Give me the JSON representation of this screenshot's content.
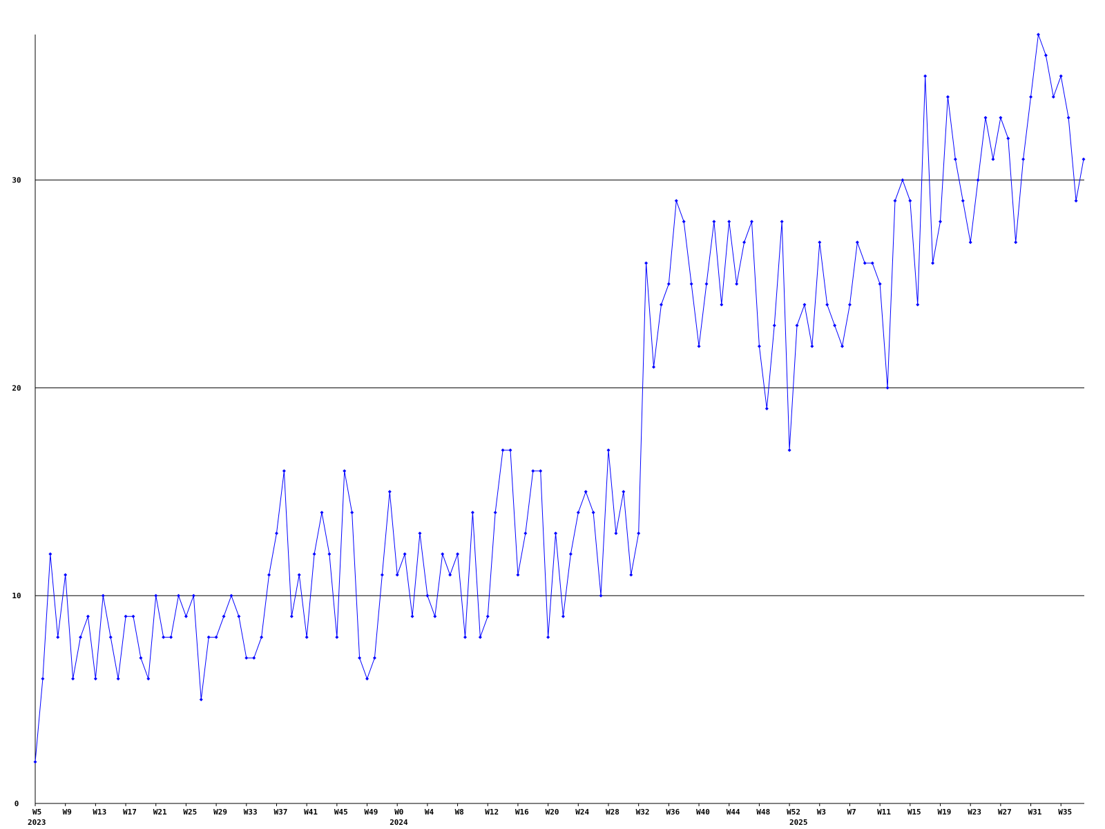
{
  "chart_data": {
    "type": "line",
    "categories": [
      "W5",
      null,
      null,
      null,
      "W9",
      null,
      null,
      null,
      "W13",
      null,
      null,
      null,
      "W17",
      null,
      null,
      null,
      "W21",
      null,
      null,
      null,
      "W25",
      null,
      null,
      null,
      "W29",
      null,
      null,
      null,
      "W33",
      null,
      null,
      null,
      "W37",
      null,
      null,
      null,
      "W41",
      null,
      null,
      null,
      "W45",
      null,
      null,
      null,
      "W49",
      null,
      null,
      null,
      "W0",
      null,
      null,
      null,
      "W4",
      null,
      null,
      null,
      "W8",
      null,
      null,
      null,
      "W12",
      null,
      null,
      null,
      "W16",
      null,
      null,
      null,
      "W20",
      null,
      null,
      null,
      "W24",
      null,
      null,
      null,
      "W28",
      null,
      null,
      null,
      "W32",
      null,
      null,
      null,
      "W36",
      null,
      null,
      null,
      "W40",
      null,
      null,
      null,
      "W44",
      null,
      null,
      null,
      "W48",
      null,
      null,
      null,
      "W52",
      null,
      null,
      null,
      "W3",
      null,
      null,
      null,
      "W7",
      null,
      null,
      null,
      "W11",
      null,
      null,
      null,
      "W15",
      null,
      null,
      null,
      "W19",
      null,
      null,
      null,
      "W23",
      null,
      null,
      null,
      "W27",
      null,
      null,
      null,
      "W31",
      null,
      null,
      null,
      "W35",
      null,
      null,
      null
    ],
    "year_labels": [
      {
        "at": 0,
        "label": "2023"
      },
      {
        "at": 48,
        "label": "2024"
      },
      {
        "at": 101,
        "label": "2025"
      }
    ],
    "series": [
      {
        "color": "#0000ff",
        "values": [
          2,
          6,
          12,
          8,
          11,
          6,
          8,
          9,
          6,
          10,
          8,
          6,
          9,
          9,
          7,
          6,
          10,
          8,
          8,
          10,
          9,
          10,
          5,
          8,
          8,
          9,
          10,
          9,
          7,
          7,
          8,
          11,
          13,
          16,
          9,
          11,
          8,
          12,
          14,
          12,
          8,
          16,
          14,
          7,
          6,
          7,
          11,
          15,
          11,
          12,
          9,
          13,
          10,
          9,
          12,
          11,
          12,
          8,
          14,
          8,
          9,
          14,
          17,
          17,
          11,
          13,
          16,
          16,
          8,
          13,
          9,
          12,
          14,
          15,
          14,
          10,
          17,
          13,
          15,
          11,
          13,
          26,
          21,
          24,
          25,
          29,
          28,
          25,
          22,
          25,
          28,
          24,
          28,
          25,
          27,
          28,
          22,
          19,
          23,
          28,
          17,
          23,
          24,
          22,
          27,
          24,
          23,
          22,
          24,
          27,
          26,
          26,
          25,
          20,
          29,
          30,
          29,
          24,
          35,
          26,
          28,
          34,
          31,
          29,
          27,
          30,
          33,
          31,
          33,
          32,
          27,
          31,
          34,
          37,
          36,
          34,
          35,
          33,
          29,
          31
        ]
      }
    ],
    "ylim": [
      0,
      37
    ],
    "yticks": [
      0,
      10,
      20,
      30
    ],
    "grid": true
  }
}
